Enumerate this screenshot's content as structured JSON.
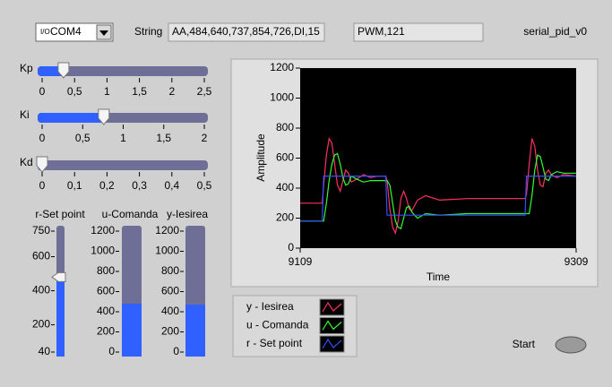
{
  "port": {
    "value": "COM4"
  },
  "string": {
    "label": "String",
    "value": "AA,484,640,737,854,726,DI,15"
  },
  "pwm": {
    "value": "PWM,121"
  },
  "vi_title": "serial_pid_v0",
  "sliders": [
    {
      "label": "Kp",
      "value": 0.33,
      "xlim": [
        0,
        2.5
      ],
      "xticks": [
        0,
        {
          "value": 0.5,
          "label": "0,5"
        },
        1,
        {
          "value": 1.5,
          "label": "1,5"
        },
        2,
        {
          "value": 2.5,
          "label": "2,5"
        }
      ]
    },
    {
      "label": "Ki",
      "value": 0.76,
      "xlim": [
        0,
        2
      ],
      "xticks": [
        0,
        {
          "value": 0.5,
          "label": "0,5"
        },
        1,
        {
          "value": 1.5,
          "label": "1,5"
        },
        2
      ]
    },
    {
      "label": "Kd",
      "value": 0,
      "xlim": [
        0,
        0.5
      ],
      "xticks": [
        0,
        {
          "value": 0.1,
          "label": "0,1"
        },
        {
          "value": 0.2,
          "label": "0,2"
        },
        {
          "value": 0.3,
          "label": "0,3"
        },
        {
          "value": 0.4,
          "label": "0,4"
        },
        {
          "value": 0.5,
          "label": "0,5"
        }
      ]
    }
  ],
  "gauges": [
    {
      "label": "r-Set point",
      "kind": "slider",
      "value": 480,
      "ylim": [
        40,
        750
      ],
      "yticks": [
        40,
        200,
        400,
        600,
        750
      ]
    },
    {
      "label": "u-Comanda",
      "kind": "tank",
      "value": 480,
      "ylim": [
        0,
        1200
      ],
      "yticks": [
        0,
        200,
        400,
        600,
        800,
        1000,
        1200
      ]
    },
    {
      "label": "y-Iesirea",
      "kind": "tank",
      "value": 470,
      "ylim": [
        0,
        1200
      ],
      "yticks": [
        0,
        200,
        400,
        600,
        800,
        1000,
        1200
      ]
    }
  ],
  "chart_data": {
    "type": "line",
    "x_label": "Time",
    "y_label": "Amplitude",
    "xlim": [
      9109,
      9309
    ],
    "xticks": [
      9109,
      9309
    ],
    "ylim": [
      0,
      1200
    ],
    "yticks": [
      0,
      200,
      400,
      600,
      800,
      1000,
      1200
    ],
    "x": [
      9109,
      9125,
      9126,
      9128,
      9130,
      9132,
      9134,
      9136,
      9138,
      9140,
      9142,
      9144,
      9146,
      9150,
      9155,
      9160,
      9165,
      9171,
      9172,
      9174,
      9176,
      9178,
      9180,
      9182,
      9184,
      9186,
      9188,
      9190,
      9194,
      9200,
      9210,
      9230,
      9250,
      9272,
      9273,
      9275,
      9277,
      9279,
      9281,
      9283,
      9285,
      9287,
      9289,
      9291,
      9295,
      9300,
      9309
    ],
    "series": [
      {
        "name": "y - Iesirea",
        "color": "#ff3060",
        "values": [
          300,
          300,
          420,
          620,
          730,
          700,
          560,
          420,
          380,
          450,
          520,
          500,
          440,
          460,
          490,
          470,
          480,
          480,
          450,
          260,
          140,
          100,
          180,
          330,
          380,
          330,
          260,
          250,
          320,
          350,
          320,
          330,
          330,
          330,
          360,
          560,
          730,
          680,
          520,
          420,
          410,
          500,
          520,
          490,
          470,
          490,
          480
        ]
      },
      {
        "name": "u - Comanda",
        "color": "#30ff30",
        "values": [
          180,
          180,
          180,
          300,
          450,
          560,
          620,
          630,
          560,
          470,
          420,
          430,
          480,
          460,
          440,
          450,
          450,
          450,
          450,
          420,
          300,
          180,
          140,
          130,
          200,
          270,
          280,
          240,
          200,
          230,
          220,
          230,
          230,
          230,
          230,
          230,
          350,
          520,
          620,
          610,
          540,
          460,
          450,
          490,
          510,
          500,
          500
        ]
      },
      {
        "name": "r - Set point",
        "color": "#3050ff",
        "values": [
          180,
          180,
          480,
          480,
          480,
          480,
          480,
          480,
          480,
          480,
          480,
          480,
          480,
          480,
          480,
          480,
          480,
          480,
          220,
          220,
          220,
          220,
          220,
          220,
          220,
          220,
          220,
          220,
          220,
          220,
          220,
          220,
          220,
          220,
          480,
          480,
          480,
          480,
          480,
          480,
          480,
          480,
          480,
          480,
          480,
          480,
          480
        ]
      }
    ]
  },
  "start": {
    "label": "Start"
  }
}
